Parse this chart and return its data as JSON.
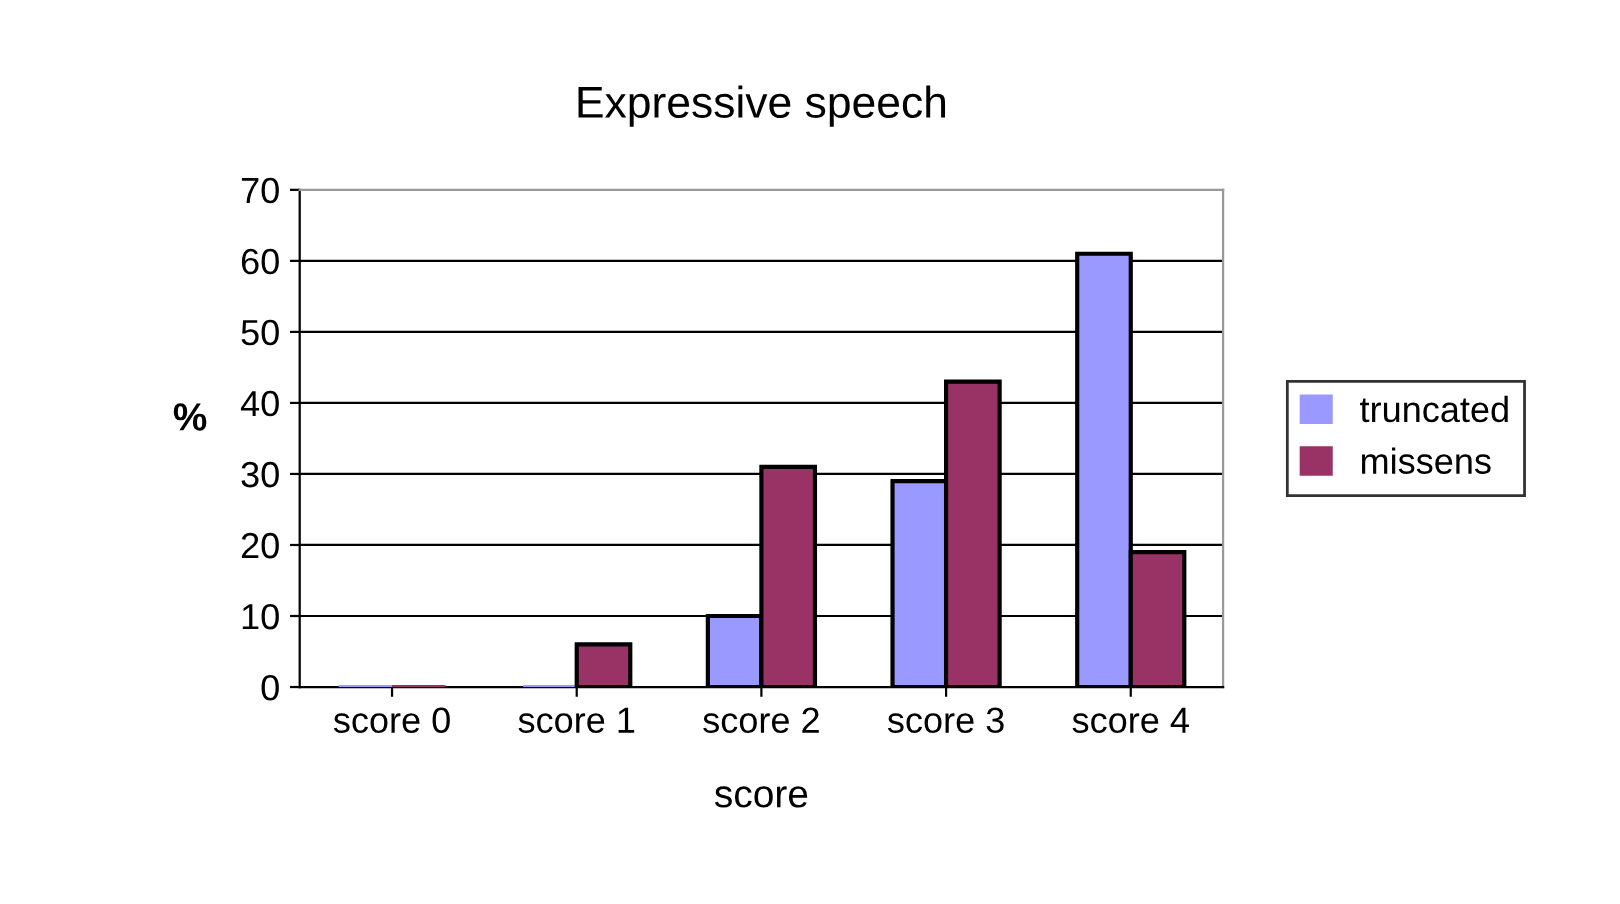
{
  "chart_data": {
    "type": "bar",
    "title": "Expressive speech",
    "xlabel": "score",
    "ylabel": "%",
    "categories": [
      "score 0",
      "score 1",
      "score 2",
      "score 3",
      "score 4"
    ],
    "series": [
      {
        "name": "truncated",
        "color": "#9999ff",
        "values": [
          0,
          0,
          10,
          29,
          61
        ]
      },
      {
        "name": "missens",
        "color": "#993366",
        "values": [
          0,
          6,
          31,
          43,
          19
        ]
      }
    ],
    "ylim": [
      0,
      70
    ],
    "yticks": [
      0,
      10,
      20,
      30,
      40,
      50,
      60,
      70
    ],
    "grid": "y",
    "legend": "right"
  }
}
